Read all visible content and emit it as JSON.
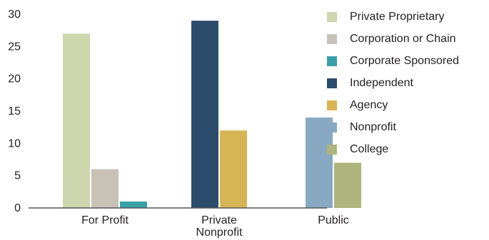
{
  "chart_data": {
    "type": "bar",
    "categories": [
      "For Profit",
      "Private Nonprofit",
      "Public"
    ],
    "category_labels": [
      [
        "For Profit"
      ],
      [
        "Private",
        "Nonprofit"
      ],
      [
        "Public"
      ]
    ],
    "series": [
      {
        "name": "Private Proprietary",
        "color": "#cdd6ad",
        "points": [
          {
            "category": "For Profit",
            "value": 27
          }
        ]
      },
      {
        "name": "Corporation or Chain",
        "color": "#c8c2b6",
        "points": [
          {
            "category": "For Profit",
            "value": 6
          }
        ]
      },
      {
        "name": "Corporate Sponsored",
        "color": "#3aa0a8",
        "points": [
          {
            "category": "For Profit",
            "value": 1
          }
        ]
      },
      {
        "name": "Independent",
        "color": "#2b4d6b",
        "points": [
          {
            "category": "Private Nonprofit",
            "value": 29
          }
        ]
      },
      {
        "name": "Agency",
        "color": "#d8b554",
        "points": [
          {
            "category": "Private Nonprofit",
            "value": 12
          }
        ]
      },
      {
        "name": "Nonprofit",
        "color": "#88a9c2",
        "points": [
          {
            "category": "Public",
            "value": 14
          }
        ]
      },
      {
        "name": "College",
        "color": "#adb57d",
        "points": [
          {
            "category": "Public",
            "value": 7
          }
        ]
      }
    ],
    "ylim": [
      0,
      30
    ],
    "yticks": [
      0,
      5,
      10,
      15,
      20,
      25,
      30
    ],
    "grid": false,
    "legend_position": "right",
    "title": "",
    "xlabel": "",
    "ylabel": ""
  }
}
